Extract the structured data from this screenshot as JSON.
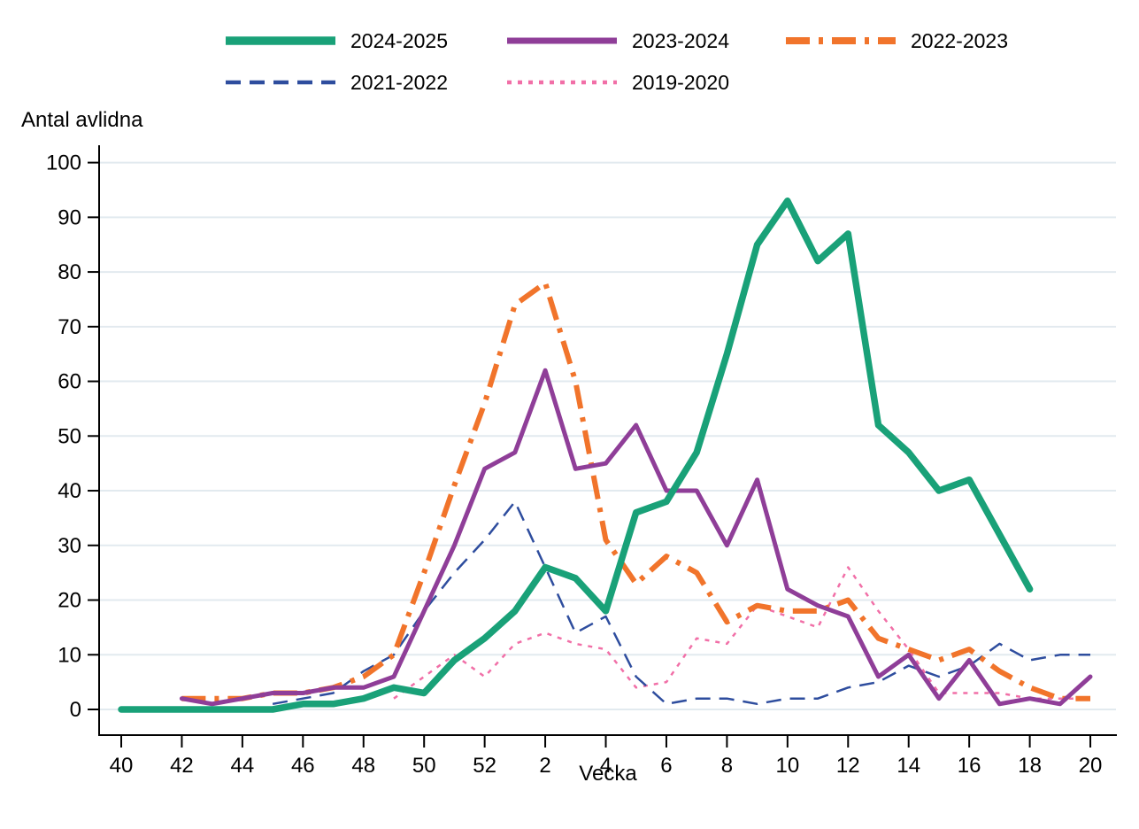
{
  "chart_data": {
    "type": "line",
    "title": "",
    "ylabel_title": "Antal avlidna",
    "xlabel": "Vecka",
    "ylim": [
      0,
      100
    ],
    "grid": true,
    "legend_position": "top",
    "y_ticks": [
      0,
      10,
      20,
      30,
      40,
      50,
      60,
      70,
      80,
      90,
      100
    ],
    "categories": [
      "40",
      "41",
      "42",
      "43",
      "44",
      "45",
      "46",
      "47",
      "48",
      "49",
      "50",
      "51",
      "52",
      "1",
      "2",
      "3",
      "4",
      "5",
      "6",
      "7",
      "8",
      "9",
      "10",
      "11",
      "12",
      "13",
      "14",
      "15",
      "16",
      "17",
      "18",
      "19",
      "20"
    ],
    "x_tick_labels": [
      "40",
      "42",
      "44",
      "46",
      "48",
      "50",
      "52",
      "2",
      "4",
      "6",
      "8",
      "10",
      "12",
      "14",
      "16",
      "18",
      "20"
    ],
    "series": [
      {
        "name": "2024-2025",
        "color": "#19a178",
        "dash": "solid",
        "width": 7.5,
        "values": [
          0,
          0,
          0,
          0,
          0,
          0,
          1,
          1,
          2,
          4,
          3,
          9,
          13,
          18,
          26,
          24,
          18,
          36,
          38,
          47,
          65,
          85,
          93,
          82,
          87,
          52,
          47,
          40,
          42,
          32,
          22,
          null,
          null
        ]
      },
      {
        "name": "2023-2024",
        "color": "#8f3e98",
        "dash": "solid",
        "width": 5,
        "values": [
          null,
          null,
          2,
          1,
          2,
          3,
          3,
          4,
          4,
          6,
          18,
          30,
          44,
          47,
          62,
          44,
          45,
          52,
          40,
          40,
          30,
          42,
          22,
          19,
          17,
          6,
          10,
          2,
          9,
          1,
          2,
          1,
          6
        ]
      },
      {
        "name": "2022-2023",
        "color": "#f1742b",
        "dash": "dashdot",
        "width": 6,
        "values": [
          null,
          null,
          2,
          2,
          2,
          3,
          3,
          4,
          6,
          10,
          25,
          41,
          56,
          74,
          78,
          60,
          31,
          23,
          28,
          25,
          16,
          19,
          18,
          18,
          20,
          13,
          11,
          9,
          11,
          7,
          4,
          2,
          2
        ]
      },
      {
        "name": "2021-2022",
        "color": "#2e4d9e",
        "dash": "dashed",
        "width": 2.5,
        "values": [
          null,
          null,
          null,
          null,
          null,
          1,
          2,
          3,
          7,
          10,
          18,
          25,
          31,
          38,
          26,
          14,
          17,
          6,
          1,
          2,
          2,
          1,
          2,
          2,
          4,
          5,
          8,
          6,
          8,
          12,
          9,
          10,
          10
        ]
      },
      {
        "name": "2019-2020",
        "color": "#f16fa7",
        "dash": "dotted",
        "width": 2.5,
        "values": [
          null,
          null,
          null,
          null,
          null,
          null,
          null,
          null,
          null,
          2,
          6,
          10,
          6,
          12,
          14,
          12,
          11,
          4,
          5,
          13,
          12,
          19,
          17,
          15,
          26,
          18,
          11,
          3,
          3,
          3,
          2,
          2,
          2
        ]
      }
    ],
    "axis_color": "#000000",
    "grid_color": "#e2eaef"
  }
}
